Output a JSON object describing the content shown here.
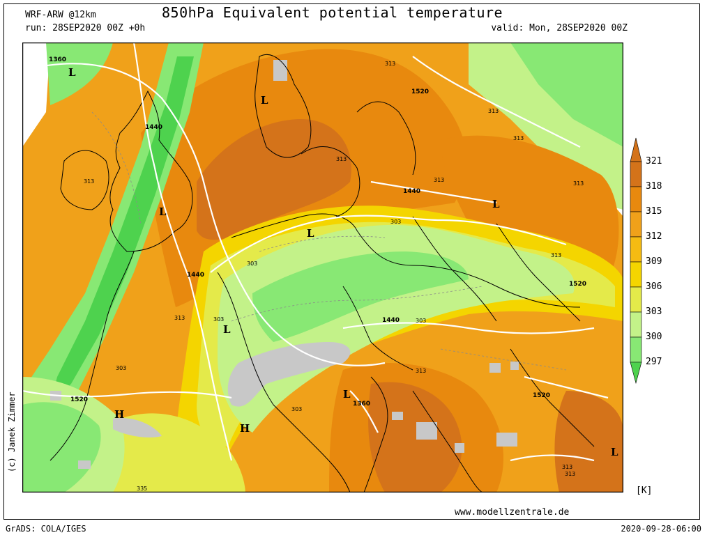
{
  "header": {
    "title": "850hPa Equivalent potential temperature",
    "model": "WRF-ARW @12km",
    "run": "run: 28SEP2020 00Z +0h",
    "valid": "valid: Mon, 28SEP2020 00Z"
  },
  "footer": {
    "credit": "(c) Janek Zimmer",
    "website": "www.modellzentrale.de",
    "software": "GrADS: COLA/IGES",
    "timestamp": "2020-09-28-06:00"
  },
  "legend": {
    "unit": "[K]",
    "levels": [
      "321",
      "318",
      "315",
      "312",
      "309",
      "306",
      "303",
      "300",
      "297"
    ],
    "colors": [
      "#d4731a",
      "#e8890e",
      "#f0a11a",
      "#f5bb12",
      "#f4d500",
      "#e4ea4a",
      "#c3f289",
      "#88e874",
      "#4ed24e"
    ]
  },
  "map": {
    "contour_labels": [
      "1360",
      "1440",
      "1440",
      "1440",
      "1440",
      "1520",
      "1520",
      "1520",
      "1520",
      "1360",
      "313",
      "313",
      "313",
      "313",
      "313",
      "313",
      "313",
      "313",
      "313",
      "303",
      "303",
      "303",
      "303",
      "303",
      "313",
      "303",
      "313",
      "313",
      "335"
    ],
    "pressure_centers": [
      "L",
      "L",
      "L",
      "L",
      "L",
      "L",
      "L",
      "H",
      "H",
      "L"
    ],
    "colors": {
      "warm": "#e8890e",
      "hot": "#d4731a",
      "mid": "#f0a11a",
      "yellow": "#f4d500",
      "lightgreen": "#c3f289",
      "green": "#88e874",
      "darkgreen": "#4ed24e",
      "missing": "#c8c8c8",
      "geopotential": "#ffffff"
    }
  }
}
